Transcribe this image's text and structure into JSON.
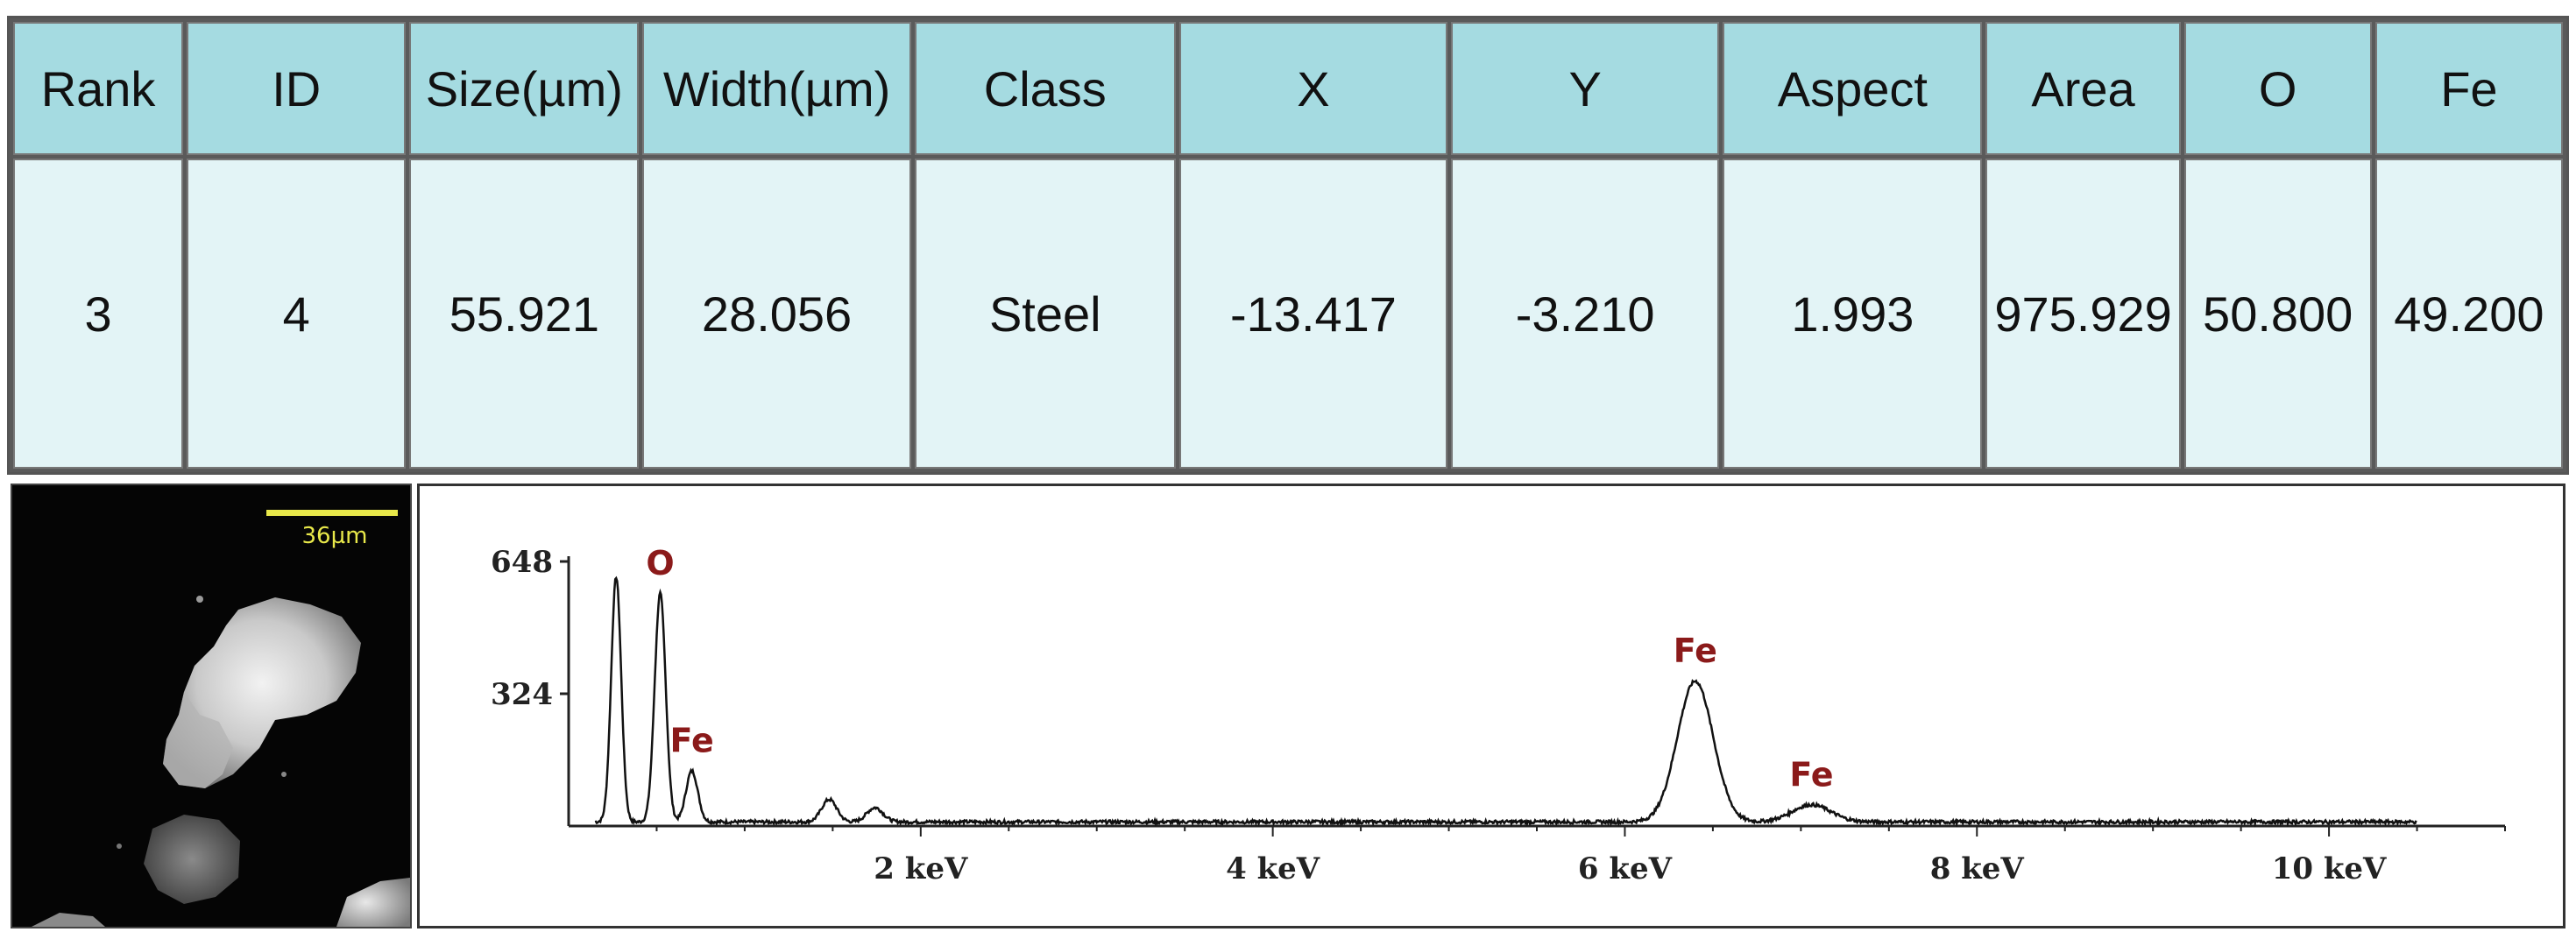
{
  "table": {
    "columns": [
      "Rank",
      "ID",
      "Size(µm)",
      "Width(µm)",
      "Class",
      "X",
      "Y",
      "Aspect",
      "Area",
      "O",
      "Fe"
    ],
    "row": [
      "3",
      "4",
      "55.921",
      "28.056",
      "Steel",
      "-13.417",
      "-3.210",
      "1.993",
      "975.929",
      "50.800",
      "49.200"
    ]
  },
  "sem_image": {
    "scale_bar_label": "36µm",
    "scale_bar_color": "#e8e84a"
  },
  "chart_data": {
    "type": "line",
    "xlabel": "",
    "ylabel": "",
    "x_ticks": [
      "2 keV",
      "4 keV",
      "6 keV",
      "8 keV",
      "10 keV"
    ],
    "x_tick_values": [
      2,
      4,
      6,
      8,
      10
    ],
    "xlim": [
      0,
      11
    ],
    "y_ticks": [
      "648",
      "324"
    ],
    "y_tick_values": [
      648,
      324
    ],
    "ylim": [
      0,
      648
    ],
    "peaks": [
      {
        "energy": 0.27,
        "counts": 600,
        "label": ""
      },
      {
        "energy": 0.52,
        "counts": 560,
        "label": "O"
      },
      {
        "energy": 0.7,
        "counts": 125,
        "label": "Fe"
      },
      {
        "energy": 1.48,
        "counts": 55,
        "label": ""
      },
      {
        "energy": 1.74,
        "counts": 35,
        "label": ""
      },
      {
        "energy": 6.4,
        "counts": 345,
        "label": "Fe"
      },
      {
        "energy": 7.06,
        "counts": 42,
        "label": "Fe"
      }
    ],
    "line_color": "#111111",
    "label_color": "#8b1a1a"
  }
}
